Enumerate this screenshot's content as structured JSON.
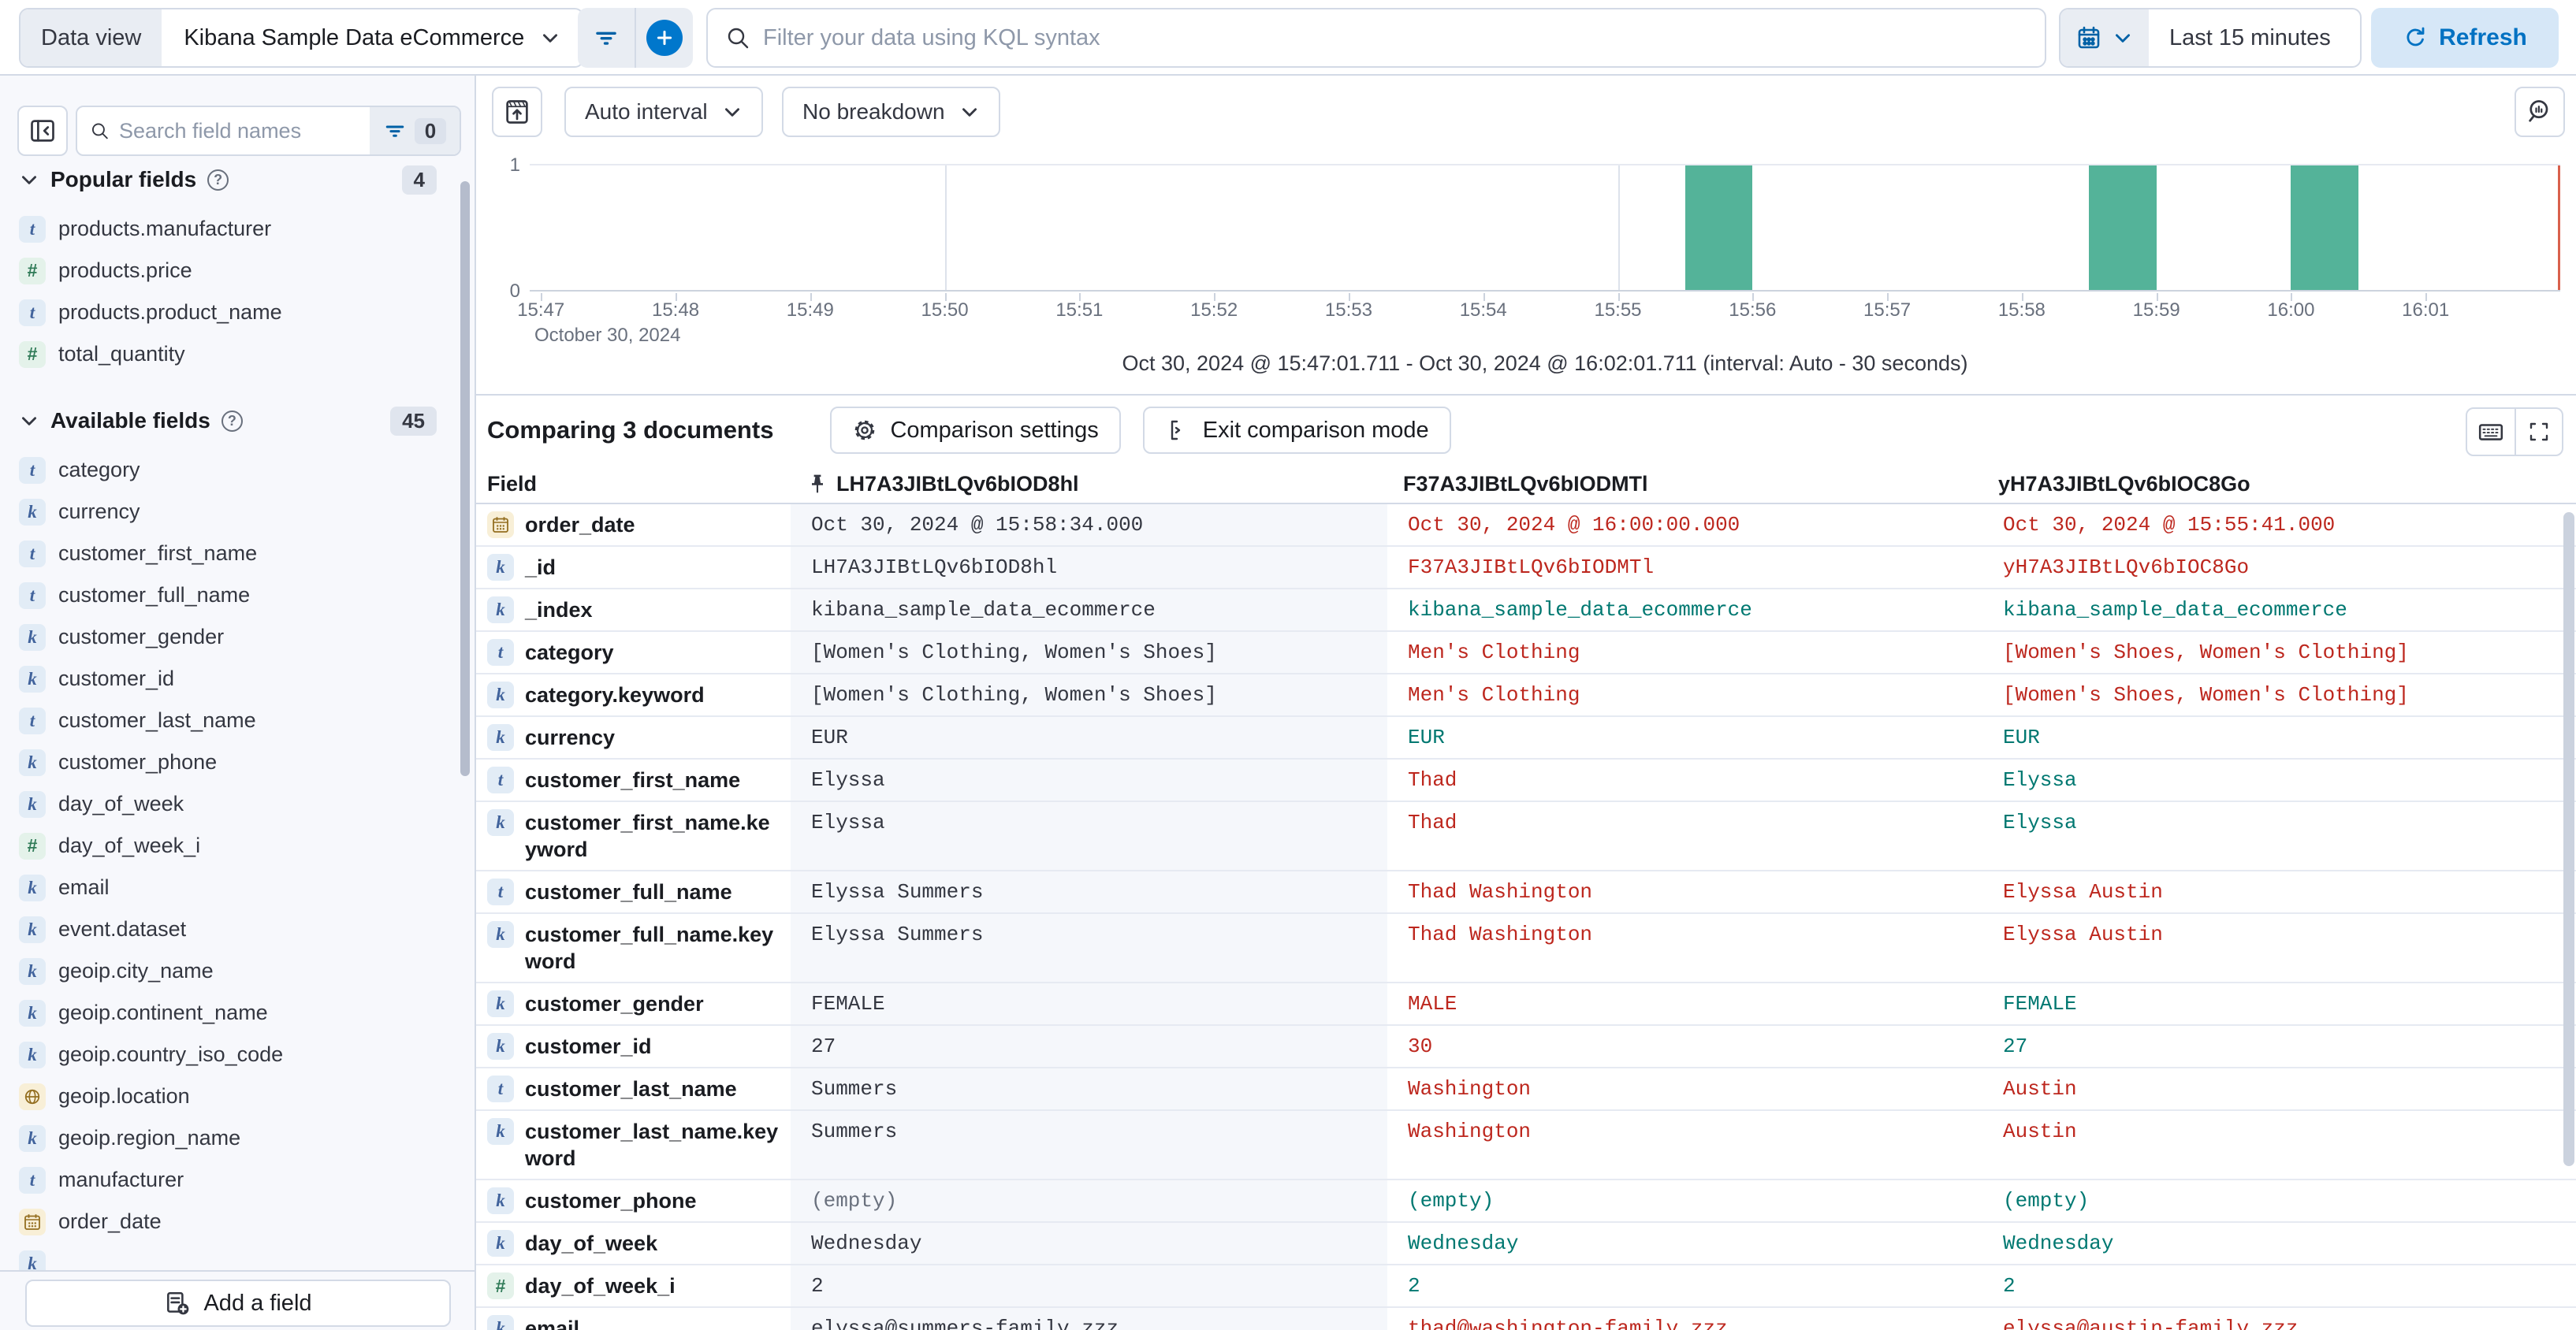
{
  "topbar": {
    "data_view_label": "Data view",
    "data_view_value": "Kibana Sample Data eCommerce",
    "kql_placeholder": "Filter your data using KQL syntax",
    "time_range_value": "Last 15 minutes",
    "refresh_label": "Refresh"
  },
  "sidebar": {
    "search_placeholder": "Search field names",
    "filter_badge": "0",
    "popular": {
      "title": "Popular fields",
      "count": "4",
      "items": [
        {
          "type": "t",
          "name": "products.manufacturer"
        },
        {
          "type": "num",
          "name": "products.price"
        },
        {
          "type": "t",
          "name": "products.product_name"
        },
        {
          "type": "num",
          "name": "total_quantity"
        }
      ]
    },
    "available": {
      "title": "Available fields",
      "count": "45",
      "items": [
        {
          "type": "t",
          "name": "category"
        },
        {
          "type": "k",
          "name": "currency"
        },
        {
          "type": "t",
          "name": "customer_first_name"
        },
        {
          "type": "t",
          "name": "customer_full_name"
        },
        {
          "type": "k",
          "name": "customer_gender"
        },
        {
          "type": "k",
          "name": "customer_id"
        },
        {
          "type": "t",
          "name": "customer_last_name"
        },
        {
          "type": "k",
          "name": "customer_phone"
        },
        {
          "type": "k",
          "name": "day_of_week"
        },
        {
          "type": "num",
          "name": "day_of_week_i"
        },
        {
          "type": "k",
          "name": "email"
        },
        {
          "type": "k",
          "name": "event.dataset"
        },
        {
          "type": "k",
          "name": "geoip.city_name"
        },
        {
          "type": "k",
          "name": "geoip.continent_name"
        },
        {
          "type": "k",
          "name": "geoip.country_iso_code"
        },
        {
          "type": "geo",
          "name": "geoip.location"
        },
        {
          "type": "k",
          "name": "geoip.region_name"
        },
        {
          "type": "t",
          "name": "manufacturer"
        },
        {
          "type": "date",
          "name": "order_date"
        },
        {
          "type": "k",
          "name": ""
        }
      ]
    },
    "add_field_label": "Add a field"
  },
  "chart_controls": {
    "interval_label": "Auto interval",
    "breakdown_label": "No breakdown"
  },
  "chart_data": {
    "type": "bar",
    "title": "",
    "xlabel": "",
    "ylabel": "",
    "ylim": [
      0,
      1
    ],
    "x_axis_date_label": "October 30, 2024",
    "x_ticks": [
      "15:47",
      "15:48",
      "15:49",
      "15:50",
      "15:51",
      "15:52",
      "15:53",
      "15:54",
      "15:55",
      "15:56",
      "15:57",
      "15:58",
      "15:59",
      "16:00",
      "16:01"
    ],
    "domain_start": "15:46:55",
    "domain_end": "16:02:00",
    "gridlines": [
      "15:50:00",
      "15:55:00",
      "16:00:00"
    ],
    "bars": [
      {
        "start": "15:55:30",
        "duration_s": 30,
        "value": 1
      },
      {
        "start": "15:58:30",
        "duration_s": 30,
        "value": 1
      },
      {
        "start": "16:00:00",
        "duration_s": 30,
        "value": 1
      }
    ],
    "current_time_marker": "16:02:00",
    "bar_color": "#54B399",
    "marker_color": "#D9604C",
    "grid_on": true,
    "caption": "Oct 30, 2024 @ 15:47:01.711 - Oct 30, 2024 @ 16:02:01.711 (interval: Auto - 30 seconds)"
  },
  "comparison": {
    "title": "Comparing 3 documents",
    "settings_label": "Comparison settings",
    "exit_label": "Exit comparison mode",
    "header": {
      "field": "Field",
      "docs": [
        "LH7A3JIBtLQv6bIOD8hl",
        "F37A3JIBtLQv6bIODMTl",
        "yH7A3JIBtLQv6bIOC8Go"
      ]
    },
    "rows": [
      {
        "type": "date",
        "field": "order_date",
        "values": [
          {
            "text": "Oct 30, 2024 @ 15:58:34.000",
            "state": "base"
          },
          {
            "text": "Oct 30, 2024 @ 16:00:00.000",
            "state": "diff"
          },
          {
            "text": "Oct 30, 2024 @ 15:55:41.000",
            "state": "diff"
          }
        ]
      },
      {
        "type": "k",
        "field": "_id",
        "values": [
          {
            "text": "LH7A3JIBtLQv6bIOD8hl",
            "state": "base"
          },
          {
            "text": "F37A3JIBtLQv6bIODMTl",
            "state": "diff"
          },
          {
            "text": "yH7A3JIBtLQv6bIOC8Go",
            "state": "diff"
          }
        ]
      },
      {
        "type": "k",
        "field": "_index",
        "values": [
          {
            "text": "kibana_sample_data_ecommerce",
            "state": "base"
          },
          {
            "text": "kibana_sample_data_ecommerce",
            "state": "same"
          },
          {
            "text": "kibana_sample_data_ecommerce",
            "state": "same"
          }
        ]
      },
      {
        "type": "t",
        "field": "category",
        "values": [
          {
            "text": "[Women's Clothing, Women's Shoes]",
            "state": "base"
          },
          {
            "text": "Men's Clothing",
            "state": "diff"
          },
          {
            "text": "[Women's Shoes, Women's Clothing]",
            "state": "diff"
          }
        ]
      },
      {
        "type": "k",
        "field": "category.keyword",
        "values": [
          {
            "text": "[Women's Clothing, Women's Shoes]",
            "state": "base"
          },
          {
            "text": "Men's Clothing",
            "state": "diff"
          },
          {
            "text": "[Women's Shoes, Women's Clothing]",
            "state": "diff"
          }
        ]
      },
      {
        "type": "k",
        "field": "currency",
        "values": [
          {
            "text": "EUR",
            "state": "base"
          },
          {
            "text": "EUR",
            "state": "same"
          },
          {
            "text": "EUR",
            "state": "same"
          }
        ]
      },
      {
        "type": "t",
        "field": "customer_first_name",
        "values": [
          {
            "text": "Elyssa",
            "state": "base"
          },
          {
            "text": "Thad",
            "state": "diff"
          },
          {
            "text": "Elyssa",
            "state": "same"
          }
        ]
      },
      {
        "type": "k",
        "field": "customer_first_name.keyword",
        "values": [
          {
            "text": "Elyssa",
            "state": "base"
          },
          {
            "text": "Thad",
            "state": "diff"
          },
          {
            "text": "Elyssa",
            "state": "same"
          }
        ]
      },
      {
        "type": "t",
        "field": "customer_full_name",
        "values": [
          {
            "text": "Elyssa Summers",
            "state": "base"
          },
          {
            "text": "Thad Washington",
            "state": "diff"
          },
          {
            "text": "Elyssa Austin",
            "state": "diff"
          }
        ]
      },
      {
        "type": "k",
        "field": "customer_full_name.keyword",
        "values": [
          {
            "text": "Elyssa Summers",
            "state": "base"
          },
          {
            "text": "Thad Washington",
            "state": "diff"
          },
          {
            "text": "Elyssa Austin",
            "state": "diff"
          }
        ]
      },
      {
        "type": "k",
        "field": "customer_gender",
        "values": [
          {
            "text": "FEMALE",
            "state": "base"
          },
          {
            "text": "MALE",
            "state": "diff"
          },
          {
            "text": "FEMALE",
            "state": "same"
          }
        ]
      },
      {
        "type": "k",
        "field": "customer_id",
        "values": [
          {
            "text": "27",
            "state": "base"
          },
          {
            "text": "30",
            "state": "diff"
          },
          {
            "text": "27",
            "state": "same"
          }
        ]
      },
      {
        "type": "t",
        "field": "customer_last_name",
        "values": [
          {
            "text": "Summers",
            "state": "base"
          },
          {
            "text": "Washington",
            "state": "diff"
          },
          {
            "text": "Austin",
            "state": "diff"
          }
        ]
      },
      {
        "type": "k",
        "field": "customer_last_name.keyword",
        "values": [
          {
            "text": "Summers",
            "state": "base"
          },
          {
            "text": "Washington",
            "state": "diff"
          },
          {
            "text": "Austin",
            "state": "diff"
          }
        ]
      },
      {
        "type": "k",
        "field": "customer_phone",
        "values": [
          {
            "text": "(empty)",
            "state": "muted"
          },
          {
            "text": "(empty)",
            "state": "same"
          },
          {
            "text": "(empty)",
            "state": "same"
          }
        ]
      },
      {
        "type": "k",
        "field": "day_of_week",
        "values": [
          {
            "text": "Wednesday",
            "state": "base"
          },
          {
            "text": "Wednesday",
            "state": "same"
          },
          {
            "text": "Wednesday",
            "state": "same"
          }
        ]
      },
      {
        "type": "num",
        "field": "day_of_week_i",
        "values": [
          {
            "text": "2",
            "state": "base"
          },
          {
            "text": "2",
            "state": "same"
          },
          {
            "text": "2",
            "state": "same"
          }
        ]
      },
      {
        "type": "k",
        "field": "email",
        "values": [
          {
            "text": "elyssa@summers-family.zzz",
            "state": "base"
          },
          {
            "text": "thad@washington-family.zzz",
            "state": "diff"
          },
          {
            "text": "elyssa@austin-family.zzz",
            "state": "diff"
          }
        ]
      }
    ]
  },
  "colors": {
    "accent": "#0077CC",
    "bar": "#54B399",
    "diff_text": "#BD271E",
    "same_text": "#007871",
    "annotation_line": "#D9604C"
  }
}
